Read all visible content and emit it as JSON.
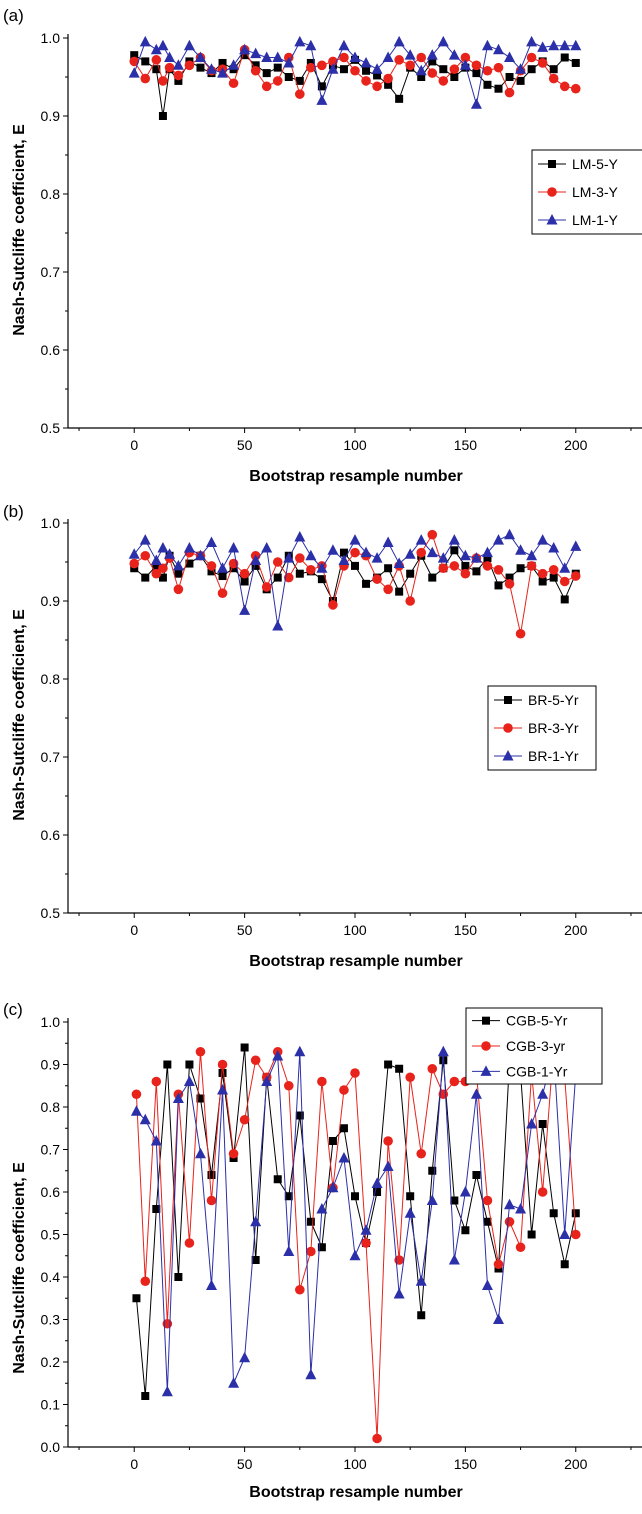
{
  "panels": [
    {
      "letter": "(a)",
      "ylabel": "Nash-Sutcliffe coefficient, E",
      "xlabel": "Bootstrap resample number"
    },
    {
      "letter": "(b)",
      "ylabel": "Nash-Sutcliffe coefficient, E",
      "xlabel": "Bootstrap resample number"
    },
    {
      "letter": "(c)",
      "ylabel": "Nash-Sutcliffe coefficient, E",
      "xlabel": "Bootstrap resample number"
    }
  ],
  "chart_data": [
    {
      "type": "line",
      "xlabel": "Bootstrap resample number",
      "ylabel": "Nash-Sutcliffe coefficient, E",
      "xlim": [
        -30,
        230
      ],
      "ylim": [
        0.5,
        1.0
      ],
      "xticks": [
        0,
        50,
        100,
        150,
        200
      ],
      "yticks": [
        0.5,
        0.6,
        0.7,
        0.8,
        0.9,
        1.0
      ],
      "legend_position": "right",
      "series": [
        {
          "name": "LM-5-Y",
          "color": "#000000",
          "marker": "square",
          "x": [
            0,
            5,
            10,
            13,
            16,
            20,
            25,
            30,
            35,
            40,
            45,
            50,
            55,
            60,
            65,
            70,
            75,
            80,
            85,
            90,
            95,
            100,
            105,
            110,
            115,
            120,
            125,
            130,
            135,
            140,
            145,
            150,
            155,
            160,
            165,
            170,
            175,
            180,
            185,
            190,
            195,
            200
          ],
          "y": [
            0.978,
            0.97,
            0.96,
            0.9,
            0.96,
            0.945,
            0.97,
            0.962,
            0.955,
            0.968,
            0.96,
            0.978,
            0.965,
            0.955,
            0.962,
            0.95,
            0.945,
            0.968,
            0.938,
            0.965,
            0.96,
            0.972,
            0.958,
            0.952,
            0.94,
            0.922,
            0.962,
            0.95,
            0.97,
            0.96,
            0.95,
            0.962,
            0.955,
            0.94,
            0.935,
            0.95,
            0.945,
            0.96,
            0.97,
            0.96,
            0.975,
            0.968
          ]
        },
        {
          "name": "LM-3-Y",
          "color": "#e8231b",
          "marker": "circle",
          "x": [
            0,
            5,
            10,
            13,
            16,
            20,
            25,
            30,
            35,
            40,
            45,
            50,
            55,
            60,
            65,
            70,
            75,
            80,
            85,
            90,
            95,
            100,
            105,
            110,
            115,
            120,
            125,
            130,
            135,
            140,
            145,
            150,
            155,
            160,
            165,
            170,
            175,
            180,
            185,
            190,
            195,
            200
          ],
          "y": [
            0.97,
            0.948,
            0.972,
            0.945,
            0.962,
            0.952,
            0.965,
            0.975,
            0.958,
            0.96,
            0.942,
            0.985,
            0.958,
            0.938,
            0.945,
            0.975,
            0.928,
            0.962,
            0.965,
            0.97,
            0.975,
            0.958,
            0.945,
            0.938,
            0.948,
            0.972,
            0.965,
            0.975,
            0.955,
            0.945,
            0.96,
            0.975,
            0.965,
            0.958,
            0.962,
            0.93,
            0.958,
            0.975,
            0.968,
            0.948,
            0.938,
            0.935
          ]
        },
        {
          "name": "LM-1-Y",
          "color": "#2b2fa8",
          "marker": "triangle",
          "x": [
            0,
            5,
            10,
            13,
            16,
            20,
            25,
            30,
            35,
            40,
            45,
            50,
            55,
            60,
            65,
            70,
            75,
            80,
            85,
            90,
            95,
            100,
            105,
            110,
            115,
            120,
            125,
            130,
            135,
            140,
            145,
            150,
            155,
            160,
            165,
            170,
            175,
            180,
            185,
            190,
            195,
            200
          ],
          "y": [
            0.955,
            0.995,
            0.985,
            0.99,
            0.975,
            0.965,
            0.99,
            0.975,
            0.96,
            0.955,
            0.965,
            0.985,
            0.98,
            0.975,
            0.975,
            0.968,
            0.995,
            0.99,
            0.92,
            0.96,
            0.99,
            0.975,
            0.968,
            0.96,
            0.975,
            0.995,
            0.978,
            0.958,
            0.978,
            0.995,
            0.978,
            0.965,
            0.915,
            0.99,
            0.985,
            0.975,
            0.96,
            0.995,
            0.988,
            0.99,
            0.99,
            0.99
          ]
        }
      ]
    },
    {
      "type": "line",
      "xlabel": "Bootstrap resample number",
      "ylabel": "Nash-Sutcliffe coefficient, E",
      "xlim": [
        -30,
        230
      ],
      "ylim": [
        0.5,
        1.0
      ],
      "xticks": [
        0,
        50,
        100,
        150,
        200
      ],
      "yticks": [
        0.5,
        0.6,
        0.7,
        0.8,
        0.9,
        1.0
      ],
      "legend_position": "right",
      "series": [
        {
          "name": "BR-5-Yr",
          "color": "#000000",
          "marker": "square",
          "x": [
            0,
            5,
            10,
            13,
            16,
            20,
            25,
            30,
            35,
            40,
            45,
            50,
            55,
            60,
            65,
            70,
            75,
            80,
            85,
            90,
            95,
            100,
            105,
            110,
            115,
            120,
            125,
            130,
            135,
            140,
            145,
            150,
            155,
            160,
            165,
            170,
            175,
            180,
            185,
            190,
            195,
            200
          ],
          "y": [
            0.942,
            0.93,
            0.945,
            0.93,
            0.958,
            0.935,
            0.948,
            0.958,
            0.938,
            0.932,
            0.942,
            0.925,
            0.945,
            0.915,
            0.93,
            0.958,
            0.935,
            0.938,
            0.928,
            0.9,
            0.962,
            0.945,
            0.922,
            0.93,
            0.942,
            0.912,
            0.935,
            0.958,
            0.93,
            0.942,
            0.965,
            0.945,
            0.938,
            0.955,
            0.92,
            0.93,
            0.942,
            0.945,
            0.925,
            0.93,
            0.902,
            0.935
          ]
        },
        {
          "name": "BR-3-Yr",
          "color": "#e8231b",
          "marker": "circle",
          "x": [
            0,
            5,
            10,
            13,
            16,
            20,
            25,
            30,
            35,
            40,
            45,
            50,
            55,
            60,
            65,
            70,
            75,
            80,
            85,
            90,
            95,
            100,
            105,
            110,
            115,
            120,
            125,
            130,
            135,
            140,
            145,
            150,
            155,
            160,
            165,
            170,
            175,
            180,
            185,
            190,
            195,
            200
          ],
          "y": [
            0.948,
            0.958,
            0.935,
            0.942,
            0.955,
            0.915,
            0.962,
            0.958,
            0.945,
            0.91,
            0.948,
            0.935,
            0.958,
            0.918,
            0.95,
            0.93,
            0.955,
            0.94,
            0.945,
            0.895,
            0.945,
            0.962,
            0.958,
            0.928,
            0.915,
            0.945,
            0.9,
            0.962,
            0.985,
            0.942,
            0.945,
            0.935,
            0.955,
            0.945,
            0.94,
            0.922,
            0.858,
            0.945,
            0.935,
            0.94,
            0.925,
            0.932
          ]
        },
        {
          "name": "BR-1-Yr",
          "color": "#2b2fa8",
          "marker": "triangle",
          "x": [
            0,
            5,
            10,
            13,
            16,
            20,
            25,
            30,
            35,
            40,
            45,
            50,
            55,
            60,
            65,
            70,
            75,
            80,
            85,
            90,
            95,
            100,
            105,
            110,
            115,
            120,
            125,
            130,
            135,
            140,
            145,
            150,
            155,
            160,
            165,
            170,
            175,
            180,
            185,
            190,
            195,
            200
          ],
          "y": [
            0.96,
            0.978,
            0.952,
            0.968,
            0.96,
            0.945,
            0.968,
            0.958,
            0.975,
            0.942,
            0.968,
            0.888,
            0.952,
            0.968,
            0.868,
            0.955,
            0.982,
            0.958,
            0.942,
            0.965,
            0.952,
            0.978,
            0.962,
            0.955,
            0.975,
            0.948,
            0.96,
            0.978,
            0.962,
            0.955,
            0.978,
            0.958,
            0.955,
            0.962,
            0.978,
            0.985,
            0.965,
            0.958,
            0.978,
            0.968,
            0.942,
            0.97
          ]
        }
      ]
    },
    {
      "type": "line",
      "xlabel": "Bootstrap resample number",
      "ylabel": "Nash-Sutcliffe coefficient, E",
      "xlim": [
        -30,
        230
      ],
      "ylim": [
        0.0,
        1.0
      ],
      "xticks": [
        0,
        50,
        100,
        150,
        200
      ],
      "yticks": [
        0.0,
        0.1,
        0.2,
        0.3,
        0.4,
        0.5,
        0.6,
        0.7,
        0.8,
        0.9,
        1.0
      ],
      "legend_position": "top-right",
      "series": [
        {
          "name": "CGB-5-Yr",
          "color": "#000000",
          "marker": "square",
          "x": [
            1,
            5,
            10,
            15,
            20,
            25,
            30,
            35,
            40,
            45,
            50,
            55,
            60,
            65,
            70,
            75,
            80,
            85,
            90,
            95,
            100,
            105,
            110,
            115,
            120,
            125,
            130,
            135,
            140,
            145,
            150,
            155,
            160,
            165,
            170,
            175,
            180,
            185,
            190,
            195,
            200
          ],
          "y": [
            0.35,
            0.12,
            0.56,
            0.9,
            0.4,
            0.9,
            0.82,
            0.64,
            0.88,
            0.68,
            0.94,
            0.44,
            0.87,
            0.63,
            0.59,
            0.78,
            0.53,
            0.47,
            0.72,
            0.75,
            0.59,
            0.48,
            0.6,
            0.9,
            0.89,
            0.59,
            0.31,
            0.65,
            0.91,
            0.58,
            0.51,
            0.64,
            0.53,
            0.42,
            0.91,
            0.88,
            0.5,
            0.76,
            0.55,
            0.43,
            0.55
          ]
        },
        {
          "name": "CGB-3-yr",
          "color": "#e8231b",
          "marker": "circle",
          "x": [
            1,
            5,
            10,
            15,
            20,
            25,
            30,
            35,
            40,
            45,
            50,
            55,
            60,
            65,
            70,
            75,
            80,
            85,
            90,
            95,
            100,
            105,
            110,
            115,
            120,
            125,
            130,
            135,
            140,
            145,
            150,
            155,
            160,
            165,
            170,
            175,
            180,
            185,
            190,
            195,
            200
          ],
          "y": [
            0.83,
            0.39,
            0.86,
            0.29,
            0.83,
            0.48,
            0.93,
            0.58,
            0.9,
            0.69,
            0.77,
            0.91,
            0.87,
            0.93,
            0.85,
            0.37,
            0.46,
            0.86,
            0.61,
            0.84,
            0.88,
            0.48,
            0.02,
            0.72,
            0.44,
            0.87,
            0.69,
            0.89,
            0.83,
            0.86,
            0.86,
            0.88,
            0.58,
            0.43,
            0.53,
            0.47,
            0.88,
            0.6,
            0.94,
            0.87,
            0.5
          ]
        },
        {
          "name": "CGB-1-Yr",
          "color": "#2b2fa8",
          "marker": "triangle",
          "x": [
            1,
            5,
            10,
            15,
            20,
            25,
            30,
            35,
            40,
            45,
            50,
            55,
            60,
            65,
            70,
            75,
            80,
            85,
            90,
            95,
            100,
            105,
            110,
            115,
            120,
            125,
            130,
            135,
            140,
            145,
            150,
            155,
            160,
            165,
            170,
            175,
            180,
            185,
            190,
            195,
            200
          ],
          "y": [
            0.79,
            0.77,
            0.72,
            0.13,
            0.82,
            0.86,
            0.69,
            0.38,
            0.84,
            0.15,
            0.21,
            0.53,
            0.86,
            0.92,
            0.46,
            0.93,
            0.17,
            0.56,
            0.61,
            0.68,
            0.45,
            0.51,
            0.62,
            0.66,
            0.36,
            0.55,
            0.39,
            0.58,
            0.93,
            0.44,
            0.6,
            0.83,
            0.38,
            0.3,
            0.57,
            0.56,
            0.76,
            0.83,
            0.93,
            0.5,
            0.88
          ]
        }
      ]
    }
  ]
}
